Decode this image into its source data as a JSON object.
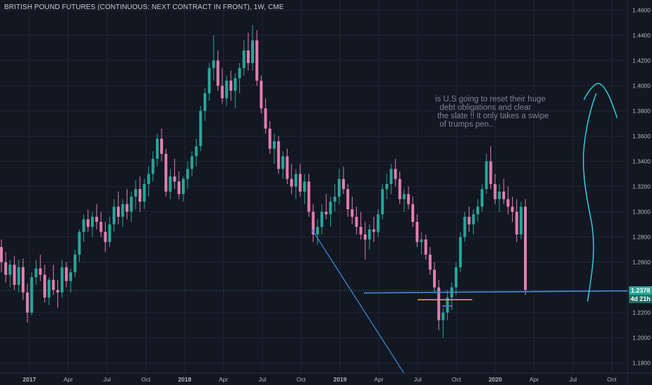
{
  "chart_data": {
    "type": "candlestick",
    "title": "BRITISH POUND FUTURES (CONTINUOUS: NEXT CONTRACT IN FRONT), 1W, CME",
    "annotation": "is U.S going to reset their huge\n  debt obligations and clear\n the slate !! it only takes a swipe\n  of trumps pen..",
    "y_ticks": [
      "1.4600",
      "1.4400",
      "1.4200",
      "1.4000",
      "1.3800",
      "1.3600",
      "1.3400",
      "1.3200",
      "1.3000",
      "1.2800",
      "1.2600",
      "1.2200",
      "1.2000",
      "1.1800"
    ],
    "x_ticks": [
      "2017",
      "Apr",
      "Jul",
      "Oct",
      "2018",
      "Apr",
      "Jul",
      "Oct",
      "2019",
      "Apr",
      "Jul",
      "Oct",
      "2020",
      "Apr",
      "Jul",
      "Oct"
    ],
    "ylim": [
      1.172,
      1.468
    ],
    "last_price": "1.2378",
    "countdown": "4d 21h",
    "horizontal_level": 1.2378,
    "colors": {
      "up": "#26a69a",
      "down": "#e07fb0",
      "trendline": "#3c7fc4",
      "orange_level": "#e0a33b",
      "arrow": "#2fc4d4",
      "price_tag": "#26a69a",
      "countdown_tag": "#1e6e66"
    },
    "series": [
      {
        "ohlc": [
          [
            1.272,
            1.278,
            1.252,
            1.26
          ],
          [
            1.26,
            1.268,
            1.244,
            1.25
          ],
          [
            1.25,
            1.262,
            1.24,
            1.258
          ],
          [
            1.258,
            1.265,
            1.238,
            1.242
          ],
          [
            1.242,
            1.262,
            1.236,
            1.256
          ],
          [
            1.256,
            1.263,
            1.23,
            1.236
          ],
          [
            1.236,
            1.243,
            1.212,
            1.22
          ],
          [
            1.22,
            1.252,
            1.218,
            1.248
          ],
          [
            1.248,
            1.262,
            1.242,
            1.255
          ],
          [
            1.255,
            1.266,
            1.245,
            1.25
          ],
          [
            1.25,
            1.258,
            1.228,
            1.232
          ],
          [
            1.232,
            1.248,
            1.226,
            1.246
          ],
          [
            1.246,
            1.258,
            1.234,
            1.238
          ],
          [
            1.238,
            1.246,
            1.224,
            1.236
          ],
          [
            1.236,
            1.262,
            1.232,
            1.256
          ],
          [
            1.256,
            1.26,
            1.24,
            1.245
          ],
          [
            1.245,
            1.255,
            1.236,
            1.252
          ],
          [
            1.252,
            1.27,
            1.248,
            1.266
          ],
          [
            1.266,
            1.286,
            1.26,
            1.284
          ],
          [
            1.284,
            1.298,
            1.276,
            1.294
          ],
          [
            1.294,
            1.302,
            1.284,
            1.288
          ],
          [
            1.288,
            1.3,
            1.28,
            1.296
          ],
          [
            1.296,
            1.306,
            1.286,
            1.292
          ],
          [
            1.292,
            1.3,
            1.28,
            1.284
          ],
          [
            1.284,
            1.292,
            1.268,
            1.276
          ],
          [
            1.276,
            1.296,
            1.272,
            1.29
          ],
          [
            1.29,
            1.31,
            1.284,
            1.304
          ],
          [
            1.304,
            1.316,
            1.29,
            1.296
          ],
          [
            1.296,
            1.31,
            1.288,
            1.306
          ],
          [
            1.306,
            1.318,
            1.294,
            1.3
          ],
          [
            1.3,
            1.316,
            1.292,
            1.312
          ],
          [
            1.312,
            1.325,
            1.302,
            1.318
          ],
          [
            1.318,
            1.328,
            1.3,
            1.308
          ],
          [
            1.308,
            1.326,
            1.302,
            1.322
          ],
          [
            1.322,
            1.336,
            1.312,
            1.33
          ],
          [
            1.33,
            1.348,
            1.324,
            1.342
          ],
          [
            1.342,
            1.362,
            1.336,
            1.358
          ],
          [
            1.358,
            1.366,
            1.34,
            1.346
          ],
          [
            1.346,
            1.35,
            1.312,
            1.316
          ],
          [
            1.316,
            1.334,
            1.31,
            1.328
          ],
          [
            1.328,
            1.342,
            1.318,
            1.324
          ],
          [
            1.324,
            1.332,
            1.31,
            1.314
          ],
          [
            1.314,
            1.328,
            1.308,
            1.326
          ],
          [
            1.326,
            1.34,
            1.318,
            1.334
          ],
          [
            1.334,
            1.348,
            1.328,
            1.344
          ],
          [
            1.344,
            1.358,
            1.336,
            1.352
          ],
          [
            1.352,
            1.384,
            1.348,
            1.38
          ],
          [
            1.38,
            1.398,
            1.372,
            1.394
          ],
          [
            1.394,
            1.418,
            1.388,
            1.414
          ],
          [
            1.414,
            1.44,
            1.404,
            1.42
          ],
          [
            1.42,
            1.428,
            1.396,
            1.4
          ],
          [
            1.4,
            1.414,
            1.386,
            1.39
          ],
          [
            1.39,
            1.408,
            1.384,
            1.404
          ],
          [
            1.404,
            1.412,
            1.388,
            1.396
          ],
          [
            1.396,
            1.41,
            1.382,
            1.406
          ],
          [
            1.406,
            1.418,
            1.394,
            1.414
          ],
          [
            1.414,
            1.436,
            1.408,
            1.428
          ],
          [
            1.428,
            1.442,
            1.412,
            1.418
          ],
          [
            1.418,
            1.448,
            1.412,
            1.436
          ],
          [
            1.436,
            1.444,
            1.4,
            1.404
          ],
          [
            1.404,
            1.408,
            1.378,
            1.382
          ],
          [
            1.382,
            1.39,
            1.362,
            1.366
          ],
          [
            1.366,
            1.372,
            1.346,
            1.35
          ],
          [
            1.35,
            1.362,
            1.338,
            1.356
          ],
          [
            1.356,
            1.36,
            1.33,
            1.334
          ],
          [
            1.334,
            1.348,
            1.326,
            1.344
          ],
          [
            1.344,
            1.35,
            1.322,
            1.326
          ],
          [
            1.326,
            1.338,
            1.314,
            1.32
          ],
          [
            1.32,
            1.334,
            1.31,
            1.33
          ],
          [
            1.33,
            1.338,
            1.312,
            1.316
          ],
          [
            1.316,
            1.33,
            1.306,
            1.324
          ],
          [
            1.324,
            1.33,
            1.296,
            1.3
          ],
          [
            1.3,
            1.306,
            1.276,
            1.282
          ],
          [
            1.282,
            1.294,
            1.274,
            1.288
          ],
          [
            1.288,
            1.306,
            1.282,
            1.3
          ],
          [
            1.3,
            1.314,
            1.294,
            1.298
          ],
          [
            1.298,
            1.312,
            1.288,
            1.308
          ],
          [
            1.308,
            1.322,
            1.3,
            1.312
          ],
          [
            1.312,
            1.334,
            1.306,
            1.326
          ],
          [
            1.326,
            1.336,
            1.314,
            1.318
          ],
          [
            1.318,
            1.322,
            1.296,
            1.302
          ],
          [
            1.302,
            1.312,
            1.29,
            1.296
          ],
          [
            1.296,
            1.304,
            1.282,
            1.288
          ],
          [
            1.288,
            1.3,
            1.278,
            1.282
          ],
          [
            1.282,
            1.292,
            1.262,
            1.278
          ],
          [
            1.278,
            1.29,
            1.27,
            1.286
          ],
          [
            1.286,
            1.296,
            1.276,
            1.284
          ],
          [
            1.284,
            1.302,
            1.28,
            1.298
          ],
          [
            1.298,
            1.322,
            1.294,
            1.318
          ],
          [
            1.318,
            1.33,
            1.31,
            1.322
          ],
          [
            1.322,
            1.338,
            1.314,
            1.334
          ],
          [
            1.334,
            1.342,
            1.32,
            1.326
          ],
          [
            1.326,
            1.332,
            1.306,
            1.31
          ],
          [
            1.31,
            1.318,
            1.3,
            1.314
          ],
          [
            1.314,
            1.32,
            1.302,
            1.306
          ],
          [
            1.306,
            1.312,
            1.288,
            1.292
          ],
          [
            1.292,
            1.298,
            1.272,
            1.276
          ],
          [
            1.276,
            1.284,
            1.266,
            1.278
          ],
          [
            1.278,
            1.282,
            1.262,
            1.266
          ],
          [
            1.266,
            1.272,
            1.25,
            1.254
          ],
          [
            1.254,
            1.26,
            1.236,
            1.24
          ],
          [
            1.24,
            1.246,
            1.206,
            1.214
          ],
          [
            1.214,
            1.224,
            1.2,
            1.22
          ],
          [
            1.22,
            1.238,
            1.214,
            1.232
          ],
          [
            1.232,
            1.244,
            1.222,
            1.24
          ],
          [
            1.24,
            1.26,
            1.234,
            1.256
          ],
          [
            1.256,
            1.284,
            1.252,
            1.28
          ],
          [
            1.28,
            1.3,
            1.276,
            1.296
          ],
          [
            1.296,
            1.304,
            1.284,
            1.29
          ],
          [
            1.29,
            1.302,
            1.282,
            1.298
          ],
          [
            1.298,
            1.31,
            1.292,
            1.304
          ],
          [
            1.304,
            1.322,
            1.3,
            1.318
          ],
          [
            1.318,
            1.346,
            1.314,
            1.34
          ],
          [
            1.34,
            1.352,
            1.318,
            1.322
          ],
          [
            1.322,
            1.33,
            1.306,
            1.31
          ],
          [
            1.31,
            1.322,
            1.3,
            1.316
          ],
          [
            1.316,
            1.326,
            1.306,
            1.31
          ],
          [
            1.31,
            1.32,
            1.298,
            1.304
          ],
          [
            1.304,
            1.312,
            1.292,
            1.3
          ],
          [
            1.3,
            1.31,
            1.276,
            1.282
          ],
          [
            1.282,
            1.308,
            1.278,
            1.304
          ],
          [
            1.304,
            1.31,
            1.234,
            1.238
          ]
        ]
      }
    ]
  }
}
